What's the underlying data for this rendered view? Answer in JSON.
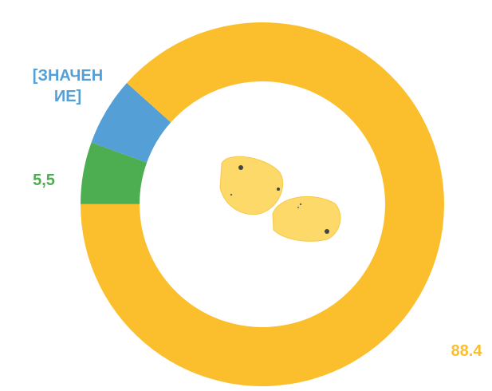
{
  "chart_data": {
    "type": "donut",
    "values": [
      88.4,
      5.5,
      6.1
    ],
    "value_labels": [
      "88.4",
      "5,5",
      "[ЗНАЧЕНИЕ]"
    ],
    "colors": [
      "#fbbf2d",
      "#4cae50",
      "#559fd7"
    ]
  }
}
